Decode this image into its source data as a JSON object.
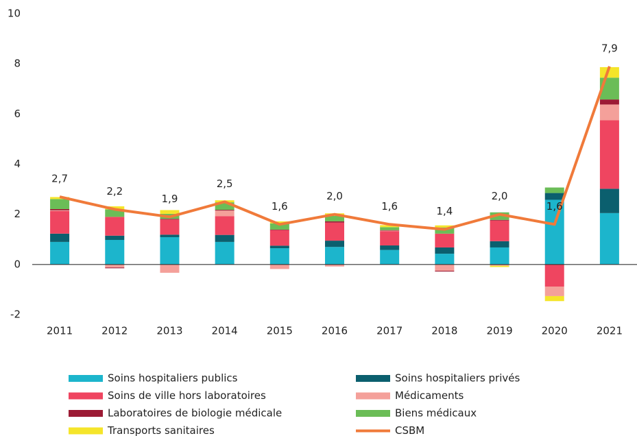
{
  "chart_data": {
    "type": "bar",
    "stacked": true,
    "categories": [
      "2011",
      "2012",
      "2013",
      "2014",
      "2015",
      "2016",
      "2017",
      "2018",
      "2019",
      "2020",
      "2021"
    ],
    "series": [
      {
        "name": "Soins hospitaliers publics",
        "color": "#1cb5cc",
        "values": [
          0.9,
          0.98,
          1.09,
          0.9,
          0.65,
          0.7,
          0.58,
          0.43,
          0.68,
          2.58,
          2.05
        ]
      },
      {
        "name": "Soins hospitaliers privés",
        "color": "#0b5f6e",
        "values": [
          0.33,
          0.17,
          0.1,
          0.28,
          0.1,
          0.25,
          0.18,
          0.25,
          0.25,
          0.27,
          0.97
        ]
      },
      {
        "name": "Soins de ville hors laboratoires",
        "color": "#ef4560",
        "values": [
          0.9,
          0.75,
          0.6,
          0.75,
          0.62,
          0.72,
          0.57,
          0.55,
          0.82,
          -0.88,
          2.73
        ]
      },
      {
        "name": "Médicaments",
        "color": "#f4a09a",
        "values": [
          0.03,
          -0.12,
          -0.33,
          0.22,
          -0.18,
          -0.08,
          0.02,
          -0.25,
          -0.05,
          -0.38,
          0.63
        ]
      },
      {
        "name": "Laboratoires de biologie médicale",
        "color": "#9c1b35",
        "values": [
          0.05,
          -0.03,
          0.03,
          0.03,
          0.02,
          0.05,
          0.02,
          -0.03,
          0.03,
          0.0,
          0.2
        ]
      },
      {
        "name": "Biens médicaux",
        "color": "#6bbd57",
        "values": [
          0.4,
          0.3,
          0.2,
          0.3,
          0.25,
          0.22,
          0.12,
          0.25,
          0.3,
          0.22,
          0.87
        ]
      },
      {
        "name": "Transports sanitaires",
        "color": "#f5e52a",
        "values": [
          0.08,
          0.12,
          0.15,
          0.08,
          0.08,
          0.1,
          0.08,
          0.08,
          -0.05,
          -0.2,
          0.42
        ]
      }
    ],
    "line": {
      "name": "CSBM",
      "color": "#f07a3a",
      "values": [
        2.7,
        2.2,
        1.9,
        2.5,
        1.6,
        2.0,
        1.6,
        1.4,
        2.0,
        1.6,
        7.9
      ],
      "value_labels": [
        "2,7",
        "2,2",
        "1,9",
        "2,5",
        "1,6",
        "2,0",
        "1,6",
        "1,4",
        "2,0",
        "1,6",
        "7,9"
      ]
    },
    "ylim": [
      -2,
      10
    ],
    "yticks": [
      -2,
      0,
      2,
      4,
      6,
      8,
      10
    ],
    "grid": false
  }
}
